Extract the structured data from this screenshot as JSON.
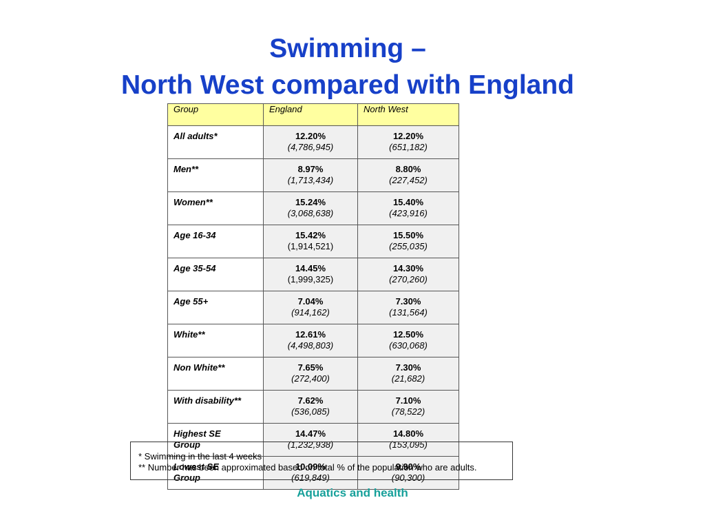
{
  "title": {
    "line1": "Swimming –",
    "line2": "North West compared with England"
  },
  "table": {
    "headers": [
      "Group",
      "England",
      "North West"
    ],
    "rows": [
      {
        "group": "All adults*",
        "england_pct": "12.20%",
        "england_num": "(4,786,945)",
        "nw_pct": "12.20%",
        "nw_num": "(651,182)"
      },
      {
        "group": "Men**",
        "england_pct": "8.97%",
        "england_num": "(1,713,434)",
        "nw_pct": "8.80%",
        "nw_num": "(227,452)"
      },
      {
        "group": "Women**",
        "england_pct": "15.24%",
        "england_num": "(3,068,638)",
        "nw_pct": "15.40%",
        "nw_num": "(423,916)"
      },
      {
        "group": "Age 16-34",
        "england_pct": "15.42%",
        "england_num": "(1,914,521)",
        "nw_pct": "15.50%",
        "nw_num": "(255,035)"
      },
      {
        "group": "Age 35-54",
        "england_pct": "14.45%",
        "england_num": "(1,999,325)",
        "nw_pct": "14.30%",
        "nw_num": "(270,260)"
      },
      {
        "group": "Age 55+",
        "england_pct": "7.04%",
        "england_num": "(914,162)",
        "nw_pct": "7.30%",
        "nw_num": "(131,564)"
      },
      {
        "group": "White**",
        "england_pct": "12.61%",
        "england_num": "(4,498,803)",
        "nw_pct": "12.50%",
        "nw_num": "(630,068)"
      },
      {
        "group": "Non White**",
        "england_pct": "7.65%",
        "england_num": "(272,400)",
        "nw_pct": "7.30%",
        "nw_num": "(21,682)"
      },
      {
        "group": "With disability**",
        "england_pct": "7.62%",
        "england_num": "(536,085)",
        "nw_pct": "7.10%",
        "nw_num": "(78,522)"
      },
      {
        "group_line1": "Highest SE",
        "group_line2": "Group",
        "england_pct": "14.47%",
        "england_num": "(1,232,938)",
        "nw_pct": "14.80%",
        "nw_num": "(153,095)"
      },
      {
        "group_line1": "Lowest SE",
        "group_line2": "Group",
        "england_pct": "10.09%",
        "england_num": "(619,849)",
        "nw_pct": "9.90%",
        "nw_num": "(90,300)"
      }
    ]
  },
  "notes": {
    "line1": "* Swimming in the last 4 weeks",
    "line2": "** Number has been approximated based on total % of the population who are adults."
  },
  "footer": "Aquatics and health",
  "colors": {
    "title": "#1740c8",
    "header_bg": "#ffffa0",
    "value_bg": "#f0f0f0",
    "footer": "#16a09a"
  }
}
